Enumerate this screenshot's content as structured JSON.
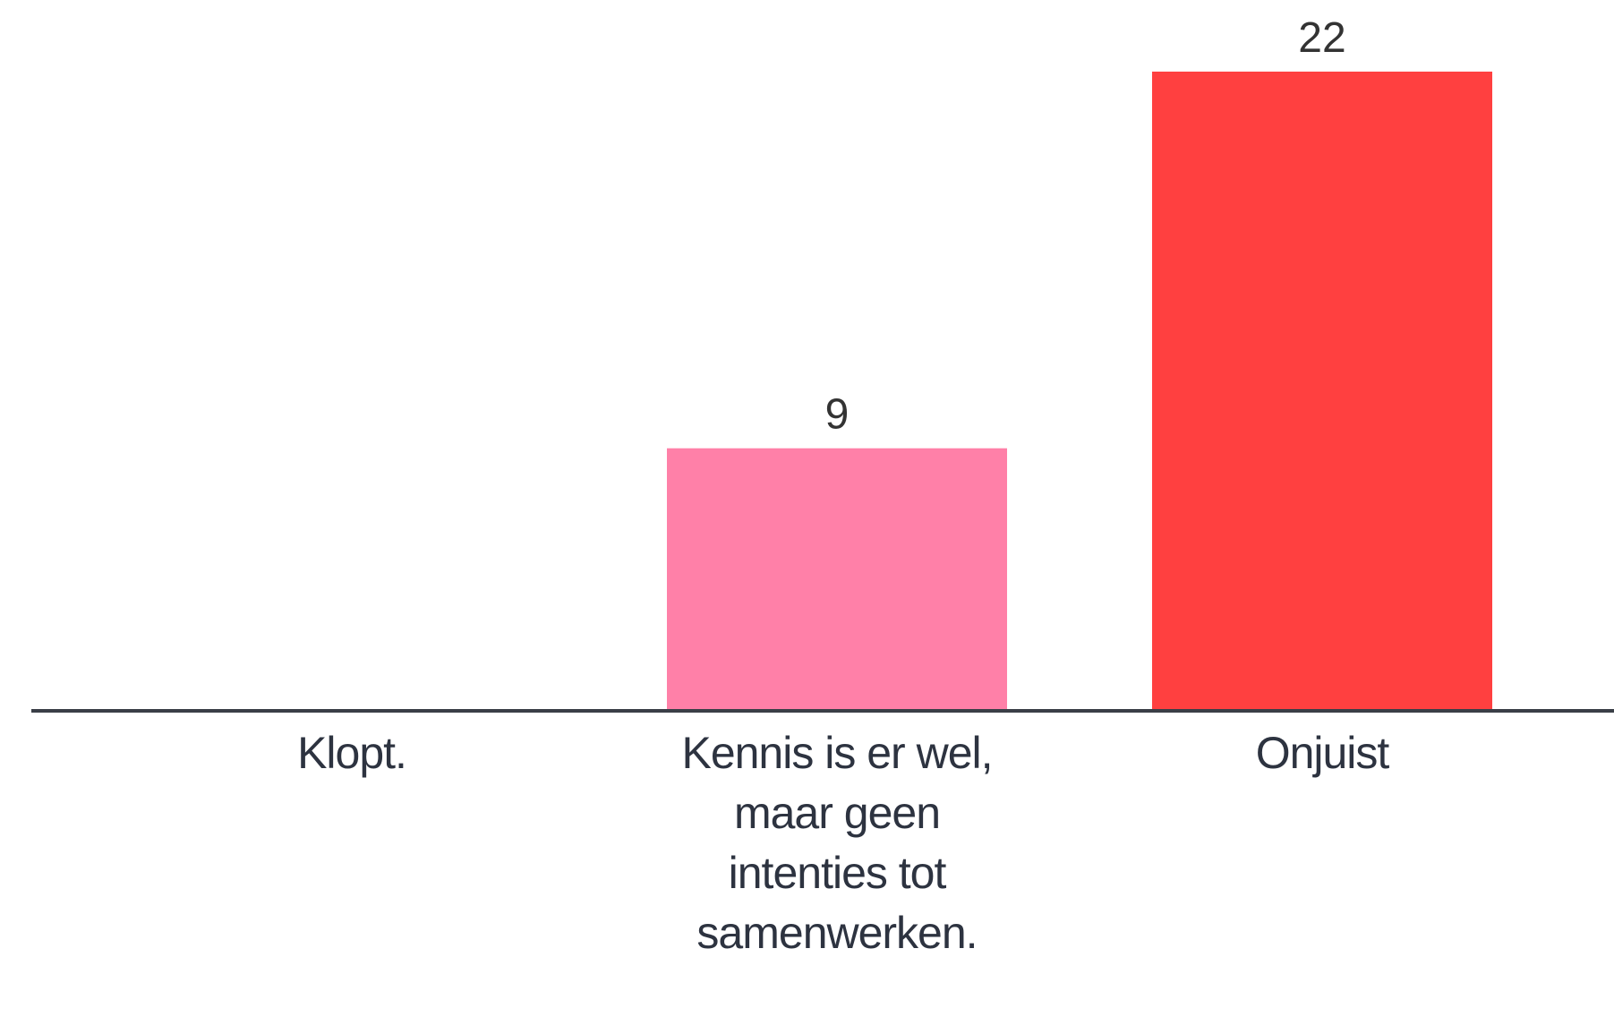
{
  "chart_data": {
    "type": "bar",
    "categories": [
      "Klopt.",
      "Kennis is er wel, maar geen intenties tot samenwerken.",
      "Onjuist"
    ],
    "values": [
      0,
      9,
      22
    ],
    "colors": [
      "#ff80a8",
      "#ff80a8",
      "#ff4040"
    ],
    "ylim": [
      0,
      22
    ]
  }
}
